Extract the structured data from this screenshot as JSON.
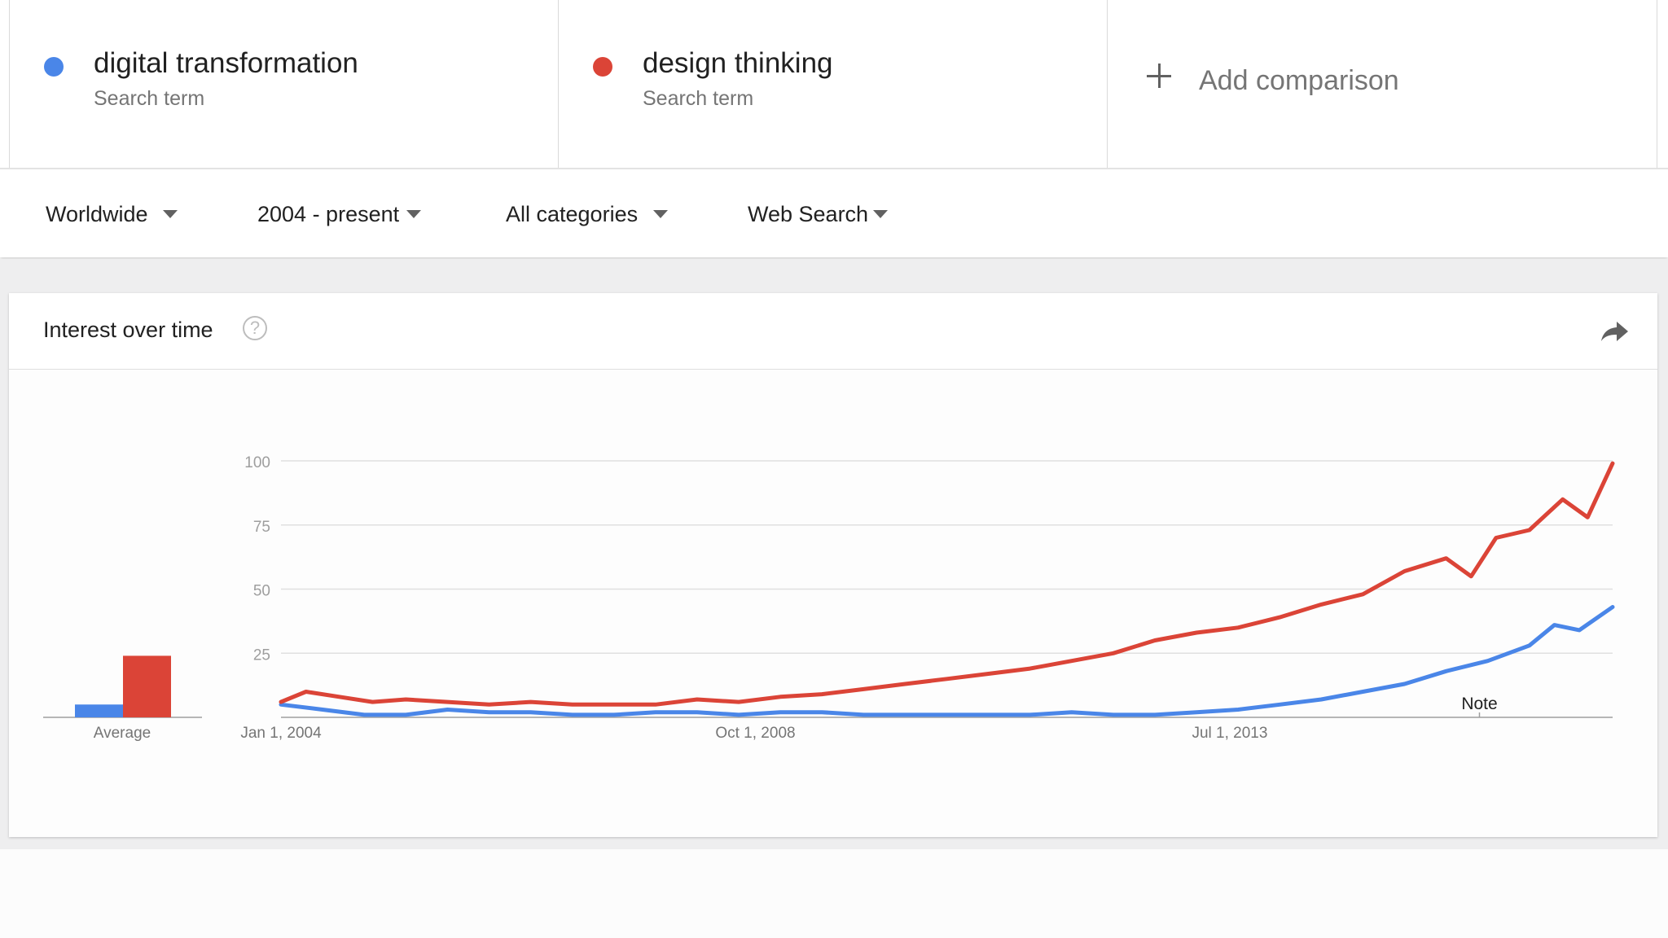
{
  "terms": [
    {
      "name": "digital transformation",
      "subtitle": "Search term",
      "color": "#4a86e8"
    },
    {
      "name": "design thinking",
      "subtitle": "Search term",
      "color": "#db4437"
    }
  ],
  "add_comparison": {
    "label": "Add comparison",
    "icon": "plus-icon"
  },
  "filters": {
    "region": "Worldwide",
    "time_range": "2004 - present",
    "category": "All categories",
    "search_type": "Web Search"
  },
  "card": {
    "title": "Interest over time",
    "help_icon": "help-circle-icon",
    "share_icon": "share-arrow-icon"
  },
  "chart_data": {
    "type": "line",
    "title": "",
    "y_ticks": [
      "100",
      "75",
      "50",
      "25"
    ],
    "ylim": [
      0,
      100
    ],
    "x_tick_labels": [
      "Jan 1, 2004",
      "Oct 1, 2008",
      "Jul 1, 2013"
    ],
    "x_tick_dates": [
      "2004-01",
      "2008-10",
      "2013-07"
    ],
    "xlim": [
      "2004-01",
      "2017-05"
    ],
    "note_label": "Note",
    "note_date": "2016-01",
    "grid": true,
    "series": [
      {
        "name": "digital transformation",
        "color": "#4a86e8",
        "average": 5,
        "points": [
          [
            "2004-01",
            5
          ],
          [
            "2004-06",
            3
          ],
          [
            "2004-11",
            1
          ],
          [
            "2005-04",
            1
          ],
          [
            "2005-09",
            3
          ],
          [
            "2006-02",
            2
          ],
          [
            "2006-07",
            2
          ],
          [
            "2006-12",
            1
          ],
          [
            "2007-05",
            1
          ],
          [
            "2007-10",
            2
          ],
          [
            "2008-03",
            2
          ],
          [
            "2008-08",
            1
          ],
          [
            "2009-01",
            2
          ],
          [
            "2009-06",
            2
          ],
          [
            "2009-11",
            1
          ],
          [
            "2010-04",
            1
          ],
          [
            "2010-09",
            1
          ],
          [
            "2011-02",
            1
          ],
          [
            "2011-07",
            1
          ],
          [
            "2011-12",
            2
          ],
          [
            "2012-05",
            1
          ],
          [
            "2012-10",
            1
          ],
          [
            "2013-03",
            2
          ],
          [
            "2013-08",
            3
          ],
          [
            "2014-01",
            5
          ],
          [
            "2014-06",
            7
          ],
          [
            "2014-11",
            10
          ],
          [
            "2015-04",
            13
          ],
          [
            "2015-09",
            18
          ],
          [
            "2016-02",
            22
          ],
          [
            "2016-07",
            28
          ],
          [
            "2016-10",
            36
          ],
          [
            "2017-01",
            34
          ],
          [
            "2017-05",
            43
          ]
        ]
      },
      {
        "name": "design thinking",
        "color": "#db4437",
        "average": 24,
        "points": [
          [
            "2004-01",
            6
          ],
          [
            "2004-04",
            10
          ],
          [
            "2004-08",
            8
          ],
          [
            "2004-12",
            6
          ],
          [
            "2005-04",
            7
          ],
          [
            "2005-09",
            6
          ],
          [
            "2006-02",
            5
          ],
          [
            "2006-07",
            6
          ],
          [
            "2006-12",
            5
          ],
          [
            "2007-05",
            5
          ],
          [
            "2007-10",
            5
          ],
          [
            "2008-03",
            7
          ],
          [
            "2008-08",
            6
          ],
          [
            "2009-01",
            8
          ],
          [
            "2009-06",
            9
          ],
          [
            "2009-11",
            11
          ],
          [
            "2010-04",
            13
          ],
          [
            "2010-09",
            15
          ],
          [
            "2011-02",
            17
          ],
          [
            "2011-07",
            19
          ],
          [
            "2011-12",
            22
          ],
          [
            "2012-05",
            25
          ],
          [
            "2012-10",
            30
          ],
          [
            "2013-03",
            33
          ],
          [
            "2013-08",
            35
          ],
          [
            "2014-01",
            39
          ],
          [
            "2014-06",
            44
          ],
          [
            "2014-11",
            48
          ],
          [
            "2015-04",
            57
          ],
          [
            "2015-09",
            62
          ],
          [
            "2015-12",
            55
          ],
          [
            "2016-03",
            70
          ],
          [
            "2016-07",
            73
          ],
          [
            "2016-11",
            85
          ],
          [
            "2017-02",
            78
          ],
          [
            "2017-05",
            99
          ]
        ]
      }
    ],
    "x_label": "Average"
  }
}
